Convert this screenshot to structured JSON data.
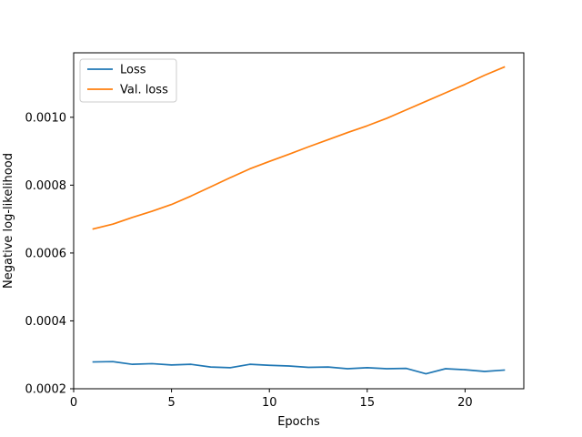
{
  "chart_data": {
    "type": "line",
    "title": "",
    "xlabel": "Epochs",
    "ylabel": "Negative log-likelihood",
    "xlim": [
      0,
      23
    ],
    "ylim": [
      0.0002,
      0.00119
    ],
    "x_ticks": [
      0,
      5,
      10,
      15,
      20
    ],
    "x_tick_labels": [
      "0",
      "5",
      "10",
      "15",
      "20"
    ],
    "y_ticks": [
      0.0002,
      0.0004,
      0.0006,
      0.0008,
      0.001
    ],
    "y_tick_labels": [
      "0.0002",
      "0.0004",
      "0.0006",
      "0.0008",
      "0.0010"
    ],
    "grid": false,
    "legend_position": "upper-left",
    "x": [
      1,
      2,
      3,
      4,
      5,
      6,
      7,
      8,
      9,
      10,
      11,
      12,
      13,
      14,
      15,
      16,
      17,
      18,
      19,
      20,
      21,
      22
    ],
    "series": [
      {
        "name": "Loss",
        "color": "#1f77b4",
        "values": [
          0.000279,
          0.00028,
          0.000272,
          0.000274,
          0.00027,
          0.000272,
          0.000264,
          0.000262,
          0.000272,
          0.000269,
          0.000267,
          0.000263,
          0.000264,
          0.000259,
          0.000262,
          0.000259,
          0.00026,
          0.000244,
          0.000259,
          0.000256,
          0.000251,
          0.000255
        ]
      },
      {
        "name": "Val. loss",
        "color": "#ff7f0e",
        "values": [
          0.000671,
          0.000685,
          0.000705,
          0.000723,
          0.000743,
          0.000768,
          0.000795,
          0.000822,
          0.000848,
          0.00087,
          0.000891,
          0.000913,
          0.000934,
          0.000955,
          0.000975,
          0.000997,
          0.001022,
          0.001047,
          0.001072,
          0.001097,
          0.001124,
          0.001148
        ]
      }
    ]
  }
}
